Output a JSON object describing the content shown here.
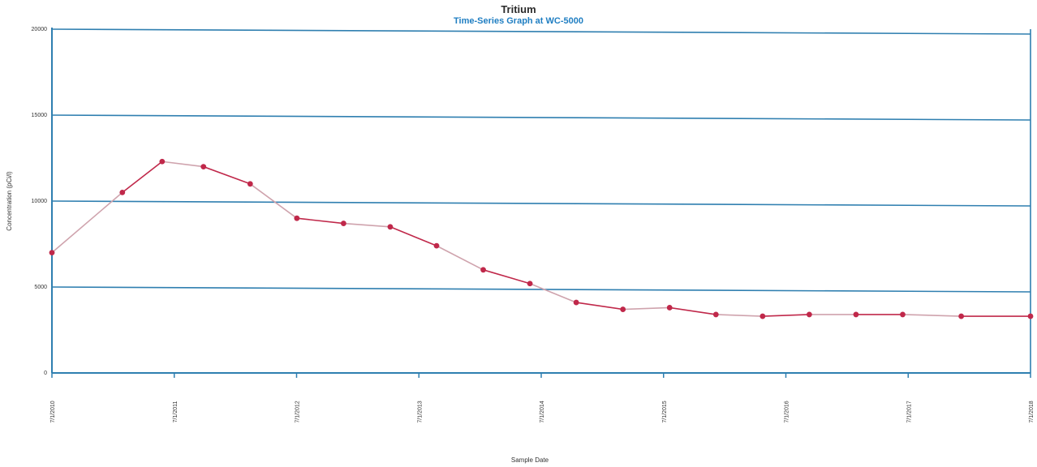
{
  "chart_data": {
    "type": "line",
    "title": "Tritium",
    "subtitle": "Time-Series Graph at WC-5000",
    "xlabel": "Sample Date",
    "ylabel": "Concentration (pCi/l)",
    "y_ticks": [
      "0",
      "5000",
      "10000",
      "15000",
      "20000"
    ],
    "ylim": [
      0,
      20000
    ],
    "x_tick_labels": [
      "7/1/2010",
      "7/1/2011",
      "7/1/2012",
      "7/1/2013",
      "7/1/2014",
      "7/1/2015",
      "7/1/2016",
      "7/1/2017",
      "7/1/2018"
    ],
    "x_range": [
      "2010-07-01",
      "2017-07-01"
    ],
    "grid": true,
    "series": [
      {
        "name": "",
        "color": "#c0284a",
        "x": [
          "2010-07-01",
          "2011-01-01",
          "2011-04-15",
          "2011-08-01",
          "2011-12-01",
          "2012-04-01",
          "2012-08-01",
          "2012-12-01",
          "2013-04-01",
          "2013-08-01",
          "2013-12-01",
          "2014-04-01",
          "2014-08-01",
          "2014-12-01",
          "2015-04-01",
          "2015-08-01",
          "2015-12-01",
          "2016-04-01",
          "2016-08-01",
          "2017-01-01",
          "2017-07-01"
        ],
        "values": [
          7000,
          10500,
          12300,
          12000,
          11000,
          9000,
          8700,
          8500,
          7400,
          6000,
          5200,
          4100,
          3700,
          3800,
          3400,
          3300,
          3400,
          3400,
          3400,
          3300,
          3300
        ]
      }
    ]
  }
}
